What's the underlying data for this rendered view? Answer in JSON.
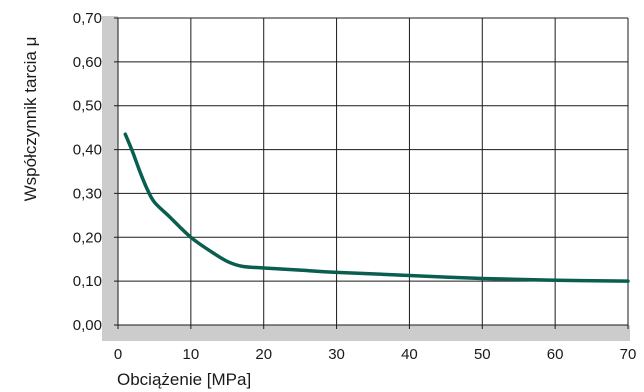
{
  "chart_data": {
    "type": "line",
    "title": "",
    "xlabel": "Obciążenie [MPa]",
    "ylabel": "Współczynnik tarcia μ",
    "xlim": [
      0,
      70
    ],
    "ylim": [
      0,
      0.7
    ],
    "x_ticks": [
      0,
      10,
      20,
      30,
      40,
      50,
      60,
      70
    ],
    "x_tick_labels": [
      "0",
      "10",
      "20",
      "30",
      "40",
      "50",
      "60",
      "70"
    ],
    "y_ticks": [
      0,
      0.1,
      0.2,
      0.3,
      0.4,
      0.5,
      0.6,
      0.7
    ],
    "y_tick_labels": [
      "0,00",
      "0,10",
      "0,20",
      "0,30",
      "0,40",
      "0,50",
      "0,60",
      "0,70"
    ],
    "grid": true,
    "series": [
      {
        "color": "#0a5e50",
        "x": [
          1,
          2,
          3,
          4,
          5,
          7,
          10,
          13,
          15,
          17,
          20,
          25,
          30,
          40,
          50,
          60,
          70
        ],
        "y": [
          0.435,
          0.395,
          0.35,
          0.31,
          0.28,
          0.248,
          0.2,
          0.165,
          0.145,
          0.134,
          0.13,
          0.125,
          0.12,
          0.113,
          0.106,
          0.102,
          0.1
        ]
      }
    ],
    "colors": {
      "axis_band": "#cccccc",
      "grid": "#1a1a1a",
      "text": "#1a1a1a"
    }
  }
}
